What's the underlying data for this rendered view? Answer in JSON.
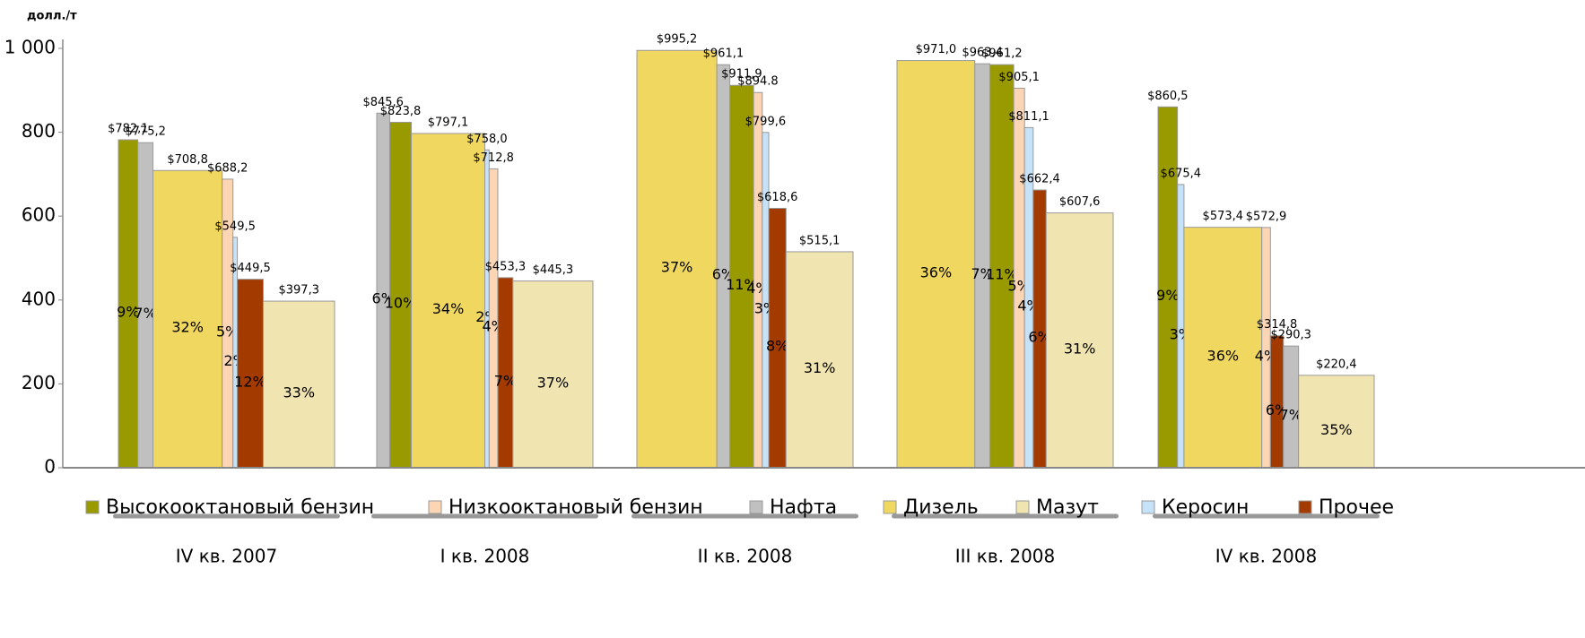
{
  "chart_data": {
    "type": "bar",
    "y_label": "долл./т",
    "categories": [
      "IV кв. 2007",
      "I кв. 2008",
      "II кв. 2008",
      "III кв. 2008",
      "IV кв. 2008"
    ],
    "ylim": [
      0,
      1000
    ],
    "yticks": [
      0,
      200,
      400,
      600,
      800,
      {
        "value": 1000,
        "label": "1 000"
      }
    ],
    "series": [
      {
        "name": "Высокооктановый бензин",
        "color": "#999900",
        "values": [
          782.1,
          823.8,
          911.9,
          961.2,
          860.5
        ],
        "value_labels": [
          "$782,1",
          "$823,8",
          "$911,9",
          "$961,2",
          "$860,5"
        ],
        "shares": [
          9,
          10,
          11,
          11,
          9
        ],
        "share_labels": [
          "9%",
          "10%",
          "11%",
          "11%",
          "9%"
        ]
      },
      {
        "name": "Низкооктановый бензин",
        "color": "#fcd5b4",
        "values": [
          688.2,
          712.8,
          894.8,
          905.1,
          572.9
        ],
        "value_labels": [
          "$688,2",
          "$712,8",
          "$894.8",
          "$905,1",
          "$572,9"
        ],
        "shares": [
          5,
          4,
          4,
          5,
          4
        ],
        "share_labels": [
          "5%",
          "4%",
          "4%",
          "5%",
          "4%"
        ]
      },
      {
        "name": "Нафта",
        "color": "#c0c0c0",
        "values": [
          775.2,
          845.6,
          961.1,
          963.4,
          290.3
        ],
        "value_labels": [
          "$775,2",
          "$845,6",
          "$961,1",
          "$963,4",
          "$290,3"
        ],
        "shares": [
          7,
          6,
          6,
          7,
          7
        ],
        "share_labels": [
          "7%",
          "6%",
          "6%",
          "7%",
          "7%"
        ]
      },
      {
        "name": "Дизель",
        "color": "#f0d860",
        "values": [
          708.8,
          797.1,
          995.2,
          971.0,
          573.4
        ],
        "value_labels": [
          "$708,8",
          "$797,1",
          "$995,2",
          "$971,0",
          "$573,4"
        ],
        "shares": [
          32,
          34,
          37,
          36,
          36
        ],
        "share_labels": [
          "32%",
          "34%",
          "37%",
          "36%",
          "36%"
        ]
      },
      {
        "name": "Мазут",
        "color": "#f0e4b0",
        "values": [
          397.3,
          445.3,
          515.1,
          607.6,
          220.4
        ],
        "value_labels": [
          "$397,3",
          "$445,3",
          "$515,1",
          "$607,6",
          "$220,4"
        ],
        "shares": [
          33,
          37,
          31,
          31,
          35
        ],
        "share_labels": [
          "33%",
          "37%",
          "31%",
          "31%",
          "35%"
        ]
      },
      {
        "name": "Керосин",
        "color": "#c6e2f8",
        "values": [
          549.5,
          758.0,
          799.6,
          811.1,
          675.4
        ],
        "value_labels": [
          "$549,5",
          "$758,0",
          "$799,6",
          "$811,1",
          "$675,4"
        ],
        "shares": [
          2,
          2,
          3,
          4,
          3
        ],
        "share_labels": [
          "2%",
          "2%",
          "3%",
          "4%",
          "3%"
        ]
      },
      {
        "name": "Прочее",
        "color": "#a33a00",
        "values": [
          449.5,
          453.3,
          618.6,
          662.4,
          314.8
        ],
        "value_labels": [
          "$449,5",
          "$453,3",
          "$618,6",
          "$662,4",
          "$314,8"
        ],
        "shares": [
          12,
          7,
          8,
          6,
          6
        ],
        "share_labels": [
          "12%",
          "7%",
          "8%",
          "6%",
          "6%"
        ]
      }
    ]
  }
}
